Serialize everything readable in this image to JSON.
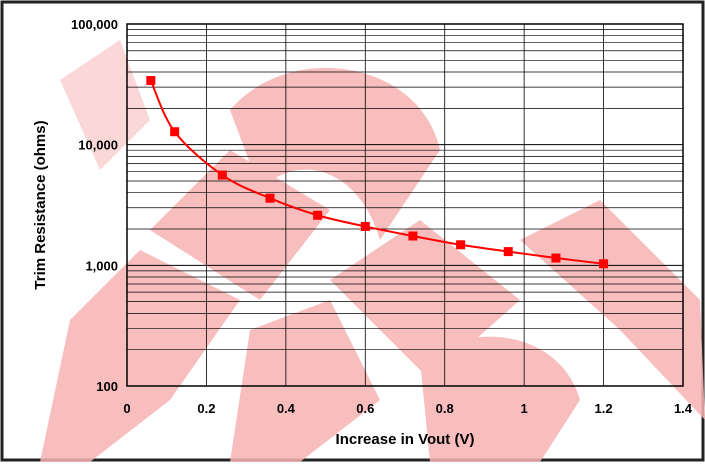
{
  "chart_data": {
    "type": "line",
    "title": "",
    "xlabel": "Increase in Vout (V)",
    "ylabel": "Trim Resistance (ohms)",
    "xlim": [
      0,
      1.4
    ],
    "ylim": [
      100,
      100000
    ],
    "yscale": "log",
    "grid": true,
    "legend": "none",
    "x_tick_labels": [
      "0",
      "0.2",
      "0.4",
      "0.6",
      "0.8",
      "1",
      "1.2",
      "1.4"
    ],
    "x_ticks": [
      0,
      0.2,
      0.4,
      0.6,
      0.8,
      1.0,
      1.2,
      1.4
    ],
    "y_tick_labels": [
      "100",
      "1,000",
      "10,000",
      "100,000"
    ],
    "y_ticks": [
      100,
      1000,
      10000,
      100000
    ],
    "series": [
      {
        "color": "#ff0000",
        "marker": "square",
        "x": [
          0.06,
          0.12,
          0.24,
          0.36,
          0.48,
          0.6,
          0.72,
          0.84,
          0.96,
          1.08,
          1.2
        ],
        "y": [
          34000,
          12800,
          5600,
          3600,
          2600,
          2100,
          1750,
          1480,
          1300,
          1150,
          1030
        ]
      }
    ],
    "colors": {
      "line": "#ff0000",
      "grid": "#000000",
      "watermark": "#f7b3b3"
    }
  }
}
